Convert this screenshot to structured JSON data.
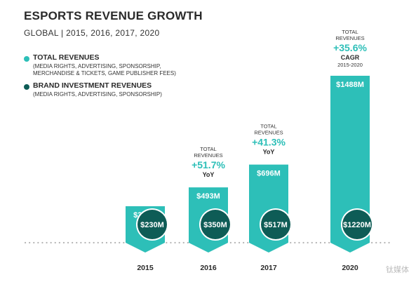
{
  "title": "ESPORTS REVENUE GROWTH",
  "subtitle": "GLOBAL | 2015, 2016, 2017, 2020",
  "legend": {
    "total": {
      "label": "TOTAL REVENUES",
      "desc1": "(MEDIA RIGHTS, ADVERTISING, SPONSORSHIP,",
      "desc2": "MERCHANDISE & TICKETS, GAME PUBLISHER FEES)",
      "color": "#2dbfb8"
    },
    "brand": {
      "label": "BRAND INVESTMENT REVENUES",
      "desc1": "(MEDIA RIGHTS, ADVERTISING, SPONSORSHIP)",
      "color": "#0e5c56"
    }
  },
  "watermark": "钛媒体",
  "chart_data": {
    "type": "bar",
    "title": "ESPORTS REVENUE GROWTH",
    "subtitle": "GLOBAL | 2015, 2016, 2017, 2020",
    "categories": [
      "2015",
      "2016",
      "2017",
      "2020"
    ],
    "series": [
      {
        "name": "TOTAL REVENUES",
        "values": [
          325,
          493,
          696,
          1488
        ],
        "labels": [
          "$325M",
          "$493M",
          "$696M",
          "$1488M"
        ],
        "color": "#2dbfb8"
      },
      {
        "name": "BRAND INVESTMENT REVENUES",
        "values": [
          230,
          350,
          517,
          1220
        ],
        "labels": [
          "$230M",
          "$350M",
          "$517M",
          "$1220M"
        ],
        "color": "#0e5c56"
      }
    ],
    "annotations": [
      {
        "category": "2016",
        "line1": "TOTAL",
        "line2": "REVENUES",
        "growth": "+51.7%",
        "period": "YoY"
      },
      {
        "category": "2017",
        "line1": "TOTAL",
        "line2": "REVENUES",
        "growth": "+41.3%",
        "period": "YoY"
      },
      {
        "category": "2020",
        "line1": "TOTAL",
        "line2": "REVENUES",
        "growth": "+35.6%",
        "period": "CAGR",
        "range": "2015-2020"
      }
    ],
    "unit": "$M",
    "ylim": [
      0,
      1488
    ],
    "grid": false,
    "legend_position": "top-left"
  }
}
